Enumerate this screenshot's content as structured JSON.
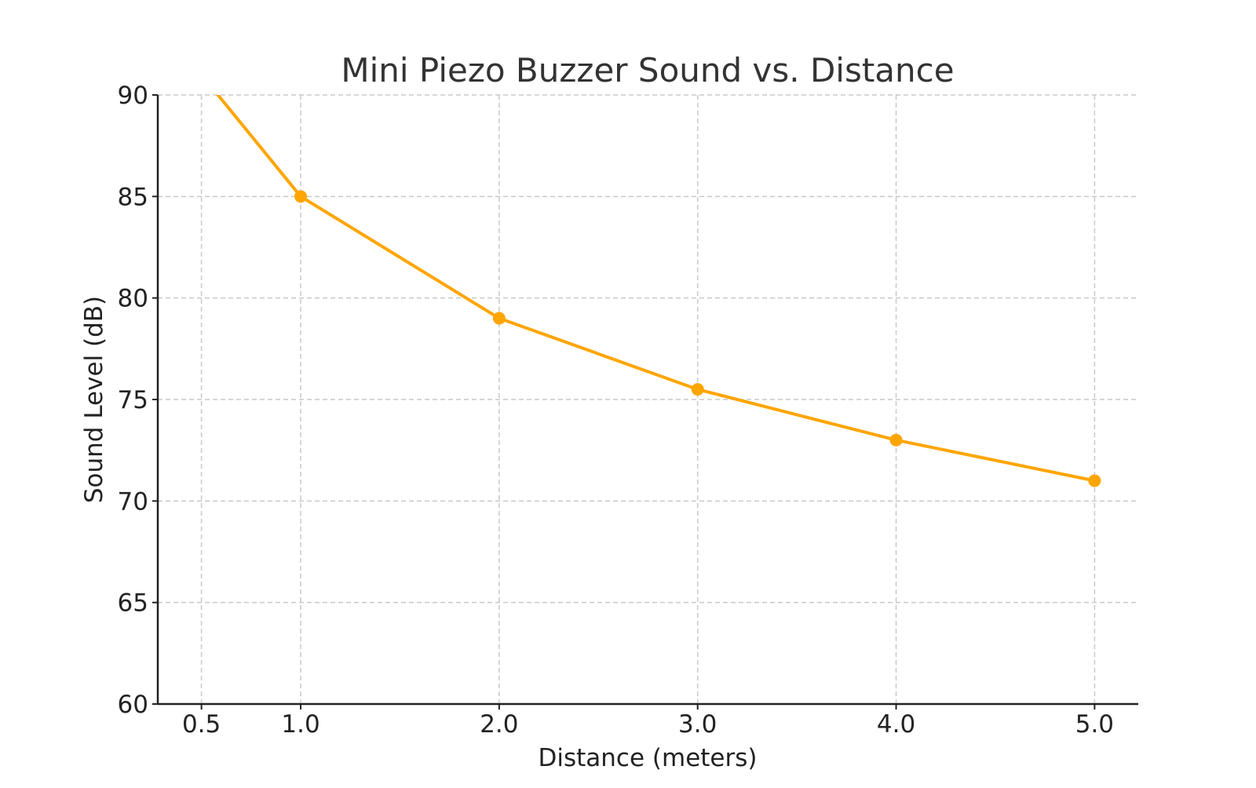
{
  "chart_data": {
    "type": "line",
    "title": "Mini Piezo Buzzer Sound vs. Distance",
    "xlabel": "Distance (meters)",
    "ylabel": "Sound Level (dB)",
    "xlim": [
      0.28,
      5.22
    ],
    "ylim": [
      60,
      90
    ],
    "xticks": [
      0.5,
      1.0,
      2.0,
      3.0,
      4.0,
      5.0
    ],
    "xtick_labels": [
      "0.5",
      "1.0",
      "2.0",
      "3.0",
      "4.0",
      "5.0"
    ],
    "yticks": [
      60,
      65,
      70,
      75,
      80,
      85,
      90
    ],
    "ytick_labels": [
      "60",
      "65",
      "70",
      "75",
      "80",
      "85",
      "90"
    ],
    "grid": true,
    "series": [
      {
        "color": "#FFA500",
        "marker": "circle",
        "x": [
          0.5,
          1.0,
          2.0,
          3.0,
          4.0,
          5.0
        ],
        "y": [
          91.0,
          85.0,
          79.0,
          75.5,
          73.0,
          71.0
        ]
      }
    ]
  }
}
